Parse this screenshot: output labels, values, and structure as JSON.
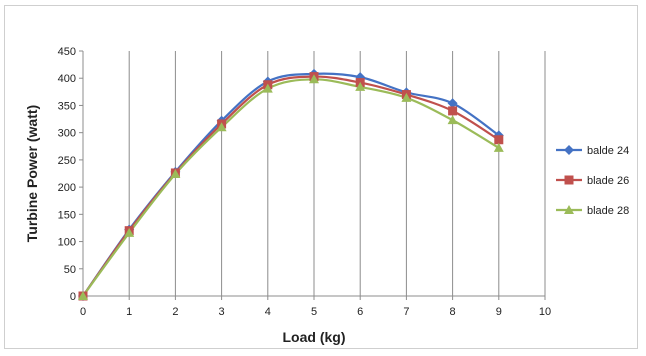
{
  "chart_data": {
    "type": "line",
    "xlabel": "Load (kg)",
    "ylabel": "Turbine Power (watt)",
    "xlim": [
      0,
      10
    ],
    "ylim": [
      0,
      450
    ],
    "x_ticks": [
      "0",
      "1",
      "2",
      "3",
      "4",
      "5",
      "6",
      "7",
      "8",
      "9",
      "10"
    ],
    "y_ticks": [
      "0",
      "50",
      "100",
      "150",
      "200",
      "250",
      "300",
      "350",
      "400",
      "450"
    ],
    "grid": "vertical",
    "legend": "right",
    "x": [
      0,
      1,
      2,
      3,
      4,
      5,
      6,
      7,
      8,
      9
    ],
    "series": [
      {
        "name": "balde 24",
        "color": "#4472c4",
        "marker": "diamond",
        "values": [
          0,
          122,
          228,
          322,
          394,
          408,
          402,
          374,
          354,
          295
        ]
      },
      {
        "name": "blade 26",
        "color": "#c0504d",
        "marker": "square",
        "values": [
          0,
          120,
          226,
          316,
          388,
          403,
          392,
          370,
          340,
          287
        ]
      },
      {
        "name": "blade 28",
        "color": "#9bbb59",
        "marker": "triangle",
        "values": [
          0,
          116,
          224,
          310,
          381,
          398,
          384,
          364,
          323,
          272
        ]
      }
    ]
  }
}
